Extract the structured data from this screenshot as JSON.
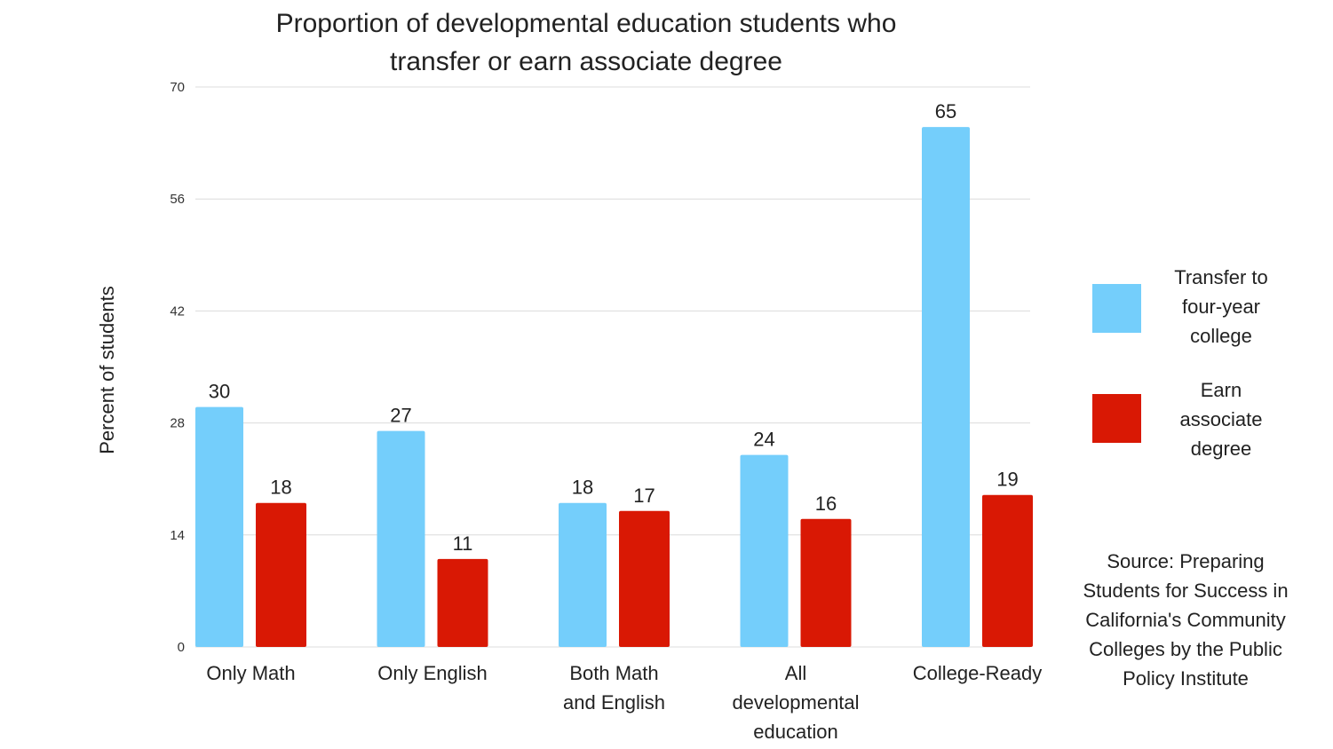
{
  "chart_data": {
    "type": "bar",
    "title_lines": [
      "Proportion of developmental education students who",
      "transfer or earn associate degree"
    ],
    "ylabel": "Percent of students",
    "xlabel": "",
    "ylim": [
      0,
      70
    ],
    "y_ticks": [
      "0",
      "14",
      "28",
      "42",
      "56",
      "70"
    ],
    "y_tick_values": [
      0,
      14,
      28,
      42,
      56,
      70
    ],
    "grid": true,
    "legend_position": "right",
    "categories": [
      [
        "Only Math"
      ],
      [
        "Only English"
      ],
      [
        "Both Math",
        "and English"
      ],
      [
        "All",
        "developmental",
        "education"
      ],
      [
        "College-Ready"
      ]
    ],
    "series": [
      {
        "name_lines": [
          "Transfer to",
          "four-year",
          "college"
        ],
        "color": "#74cefb",
        "values": [
          30,
          27,
          18,
          24,
          65
        ],
        "value_labels": [
          "30",
          "27",
          "18",
          "24",
          "65"
        ]
      },
      {
        "name_lines": [
          "Earn",
          "associate",
          "degree"
        ],
        "color": "#d91804",
        "values": [
          18,
          11,
          17,
          16,
          19
        ],
        "value_labels": [
          "18",
          "11",
          "17",
          "16",
          "19"
        ]
      }
    ],
    "source_lines": [
      "Source: Preparing",
      "Students for Success in",
      "California's Community",
      "Colleges by the Public",
      "Policy Institute"
    ]
  }
}
